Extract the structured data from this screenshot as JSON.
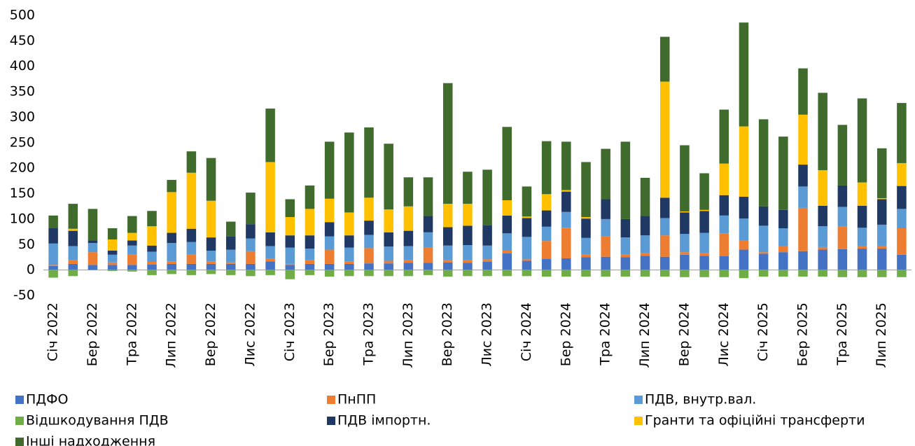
{
  "chart_data": {
    "type": "stacked_bar",
    "categories": [
      "Січ 2022",
      null,
      "Бер 2022",
      null,
      "Тра 2022",
      null,
      "Лип 2022",
      null,
      "Вер 2022",
      null,
      "Лис 2022",
      null,
      "Січ 2023",
      null,
      "Бер 2023",
      null,
      "Тра 2023",
      null,
      "Лип 2023",
      null,
      "Вер 2023",
      null,
      "Лис 2023",
      null,
      "Січ 2024",
      null,
      "Бер 2024",
      null,
      "Тра 2024",
      null,
      "Лип 2024",
      null,
      "Вер 2024",
      null,
      "Лис 2024",
      null,
      "Січ 2025",
      null,
      "Бер 2025",
      null,
      "Тра 2025",
      null,
      "Лип 2025",
      null
    ],
    "series": [
      {
        "name": "ПДФО",
        "color": "#4472c4",
        "values": [
          8,
          12,
          10,
          10,
          10,
          11,
          12,
          12,
          12,
          12,
          12,
          17,
          10,
          12,
          12,
          12,
          13,
          13,
          14,
          14,
          15,
          14,
          16,
          33,
          18,
          22,
          23,
          25,
          26,
          25,
          28,
          26,
          30,
          28,
          27,
          40,
          32,
          35,
          37,
          40,
          41,
          42,
          42,
          30
        ]
      },
      {
        "name": "ПнПП",
        "color": "#ed7d31",
        "values": [
          2,
          8,
          25,
          5,
          20,
          5,
          5,
          18,
          5,
          3,
          25,
          5,
          2,
          8,
          28,
          5,
          30,
          5,
          5,
          30,
          5,
          5,
          5,
          5,
          3,
          35,
          60,
          5,
          40,
          5,
          5,
          42,
          5,
          5,
          45,
          18,
          3,
          12,
          85,
          5,
          45,
          5,
          5,
          52
        ]
      },
      {
        "name": "ПДВ, внутр.вал.",
        "color": "#5b9bd5",
        "values": [
          42,
          27,
          18,
          15,
          18,
          20,
          36,
          25,
          21,
          25,
          25,
          25,
          32,
          22,
          26,
          27,
          26,
          28,
          28,
          30,
          28,
          30,
          27,
          34,
          44,
          28,
          31,
          33,
          34,
          34,
          35,
          34,
          36,
          40,
          35,
          43,
          52,
          35,
          42,
          41,
          38,
          36,
          42,
          38
        ]
      },
      {
        "name": "Відшкодування ПДВ",
        "color": "#70ad47",
        "values": [
          -15,
          -12,
          0,
          -2,
          -3,
          -10,
          -8,
          -10,
          -8,
          -10,
          -12,
          -10,
          -18,
          -10,
          -13,
          -12,
          -12,
          -12,
          -12,
          -10,
          -13,
          -12,
          -12,
          -12,
          -12,
          -13,
          -13,
          -13,
          -13,
          -13,
          -13,
          -13,
          -14,
          -14,
          -14,
          -16,
          -13,
          -13,
          -13,
          -13,
          -14,
          -14,
          -14,
          -14
        ]
      },
      {
        "name": "ПДВ імпортн.",
        "color": "#203864",
        "values": [
          30,
          30,
          5,
          8,
          10,
          12,
          20,
          26,
          26,
          26,
          28,
          27,
          24,
          26,
          28,
          24,
          28,
          28,
          30,
          32,
          36,
          38,
          40,
          35,
          37,
          32,
          40,
          38,
          39,
          36,
          38,
          40,
          42,
          43,
          40,
          43,
          38,
          36,
          43,
          40,
          42,
          43,
          50,
          45
        ]
      },
      {
        "name": "Гранти та офіційні трансферти",
        "color": "#ffc000",
        "values": [
          0,
          4,
          0,
          22,
          15,
          38,
          80,
          110,
          72,
          0,
          0,
          138,
          36,
          52,
          46,
          45,
          45,
          45,
          48,
          0,
          46,
          43,
          0,
          30,
          3,
          32,
          3,
          3,
          0,
          0,
          0,
          228,
          2,
          2,
          62,
          138,
          0,
          0,
          98,
          70,
          0,
          46,
          2,
          45
        ]
      },
      {
        "name": "Інші надходження",
        "color": "#3f6b2c",
        "values": [
          25,
          49,
          62,
          22,
          33,
          30,
          24,
          42,
          84,
          29,
          62,
          105,
          35,
          46,
          112,
          157,
          138,
          129,
          57,
          76,
          237,
          63,
          109,
          144,
          59,
          104,
          95,
          108,
          99,
          152,
          75,
          88,
          130,
          72,
          106,
          204,
          171,
          144,
          91,
          152,
          119,
          165,
          98,
          118
        ]
      }
    ],
    "ylim": [
      -50,
      500
    ],
    "yticks": [
      -50,
      0,
      50,
      100,
      150,
      200,
      250,
      300,
      350,
      400,
      450,
      500
    ]
  }
}
